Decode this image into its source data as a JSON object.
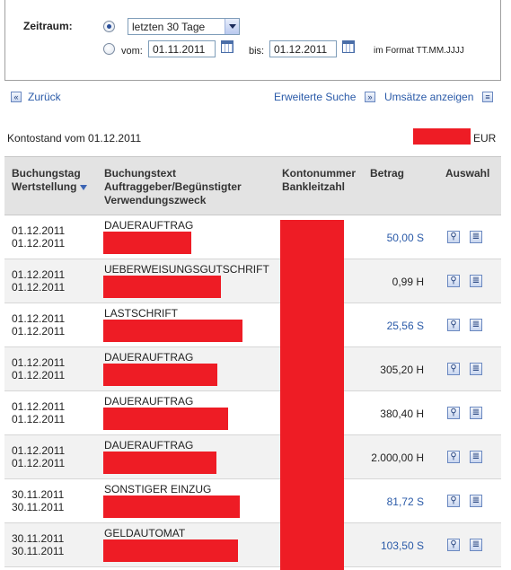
{
  "filter": {
    "zeitraum_label": "Zeitraum:",
    "period_select_value": "letzten 30 Tage",
    "from_label": "vom:",
    "from_value": "01.11.2011",
    "to_label": "bis:",
    "to_value": "01.12.2011",
    "format_hint": "im Format TT.MM.JJJJ"
  },
  "nav": {
    "back_label": "Zurück",
    "advanced_search_label": "Erweiterte Suche",
    "show_transactions_label": "Umsätze anzeigen"
  },
  "balance": {
    "label": "Kontostand vom 01.12.2011",
    "currency": "EUR"
  },
  "table": {
    "headers": {
      "date_line1": "Buchungstag",
      "date_line2": "Wertstellung",
      "text_line1": "Buchungstext",
      "text_line2": "Auftraggeber/Begünstigter",
      "text_line3": "Verwendungszweck",
      "account_line1": "Kontonummer",
      "account_line2": "Bankleitzahl",
      "amount": "Betrag",
      "action": "Auswahl"
    },
    "rows": [
      {
        "booking": "01.12.2011",
        "value": "01.12.2011",
        "type": "DAUERAUFTRAG",
        "amount": "50,00 S"
      },
      {
        "booking": "01.12.2011",
        "value": "01.12.2011",
        "type": "UEBERWEISUNGSGUTSCHRIFT",
        "amount": "0,99 H"
      },
      {
        "booking": "01.12.2011",
        "value": "01.12.2011",
        "type": "LASTSCHRIFT",
        "amount": "25,56 S"
      },
      {
        "booking": "01.12.2011",
        "value": "01.12.2011",
        "type": "DAUERAUFTRAG",
        "amount": "305,20 H"
      },
      {
        "booking": "01.12.2011",
        "value": "01.12.2011",
        "type": "DAUERAUFTRAG",
        "amount": "380,40 H"
      },
      {
        "booking": "01.12.2011",
        "value": "01.12.2011",
        "type": "DAUERAUFTRAG",
        "amount": "2.000,00 H"
      },
      {
        "booking": "30.11.2011",
        "value": "30.11.2011",
        "type": "SONSTIGER EINZUG",
        "amount": "81,72 S"
      },
      {
        "booking": "30.11.2011",
        "value": "30.11.2011",
        "type": "GELDAUTOMAT",
        "amount": "103,50 S"
      }
    ]
  },
  "colors": {
    "link": "#2a5aa8",
    "redaction": "#ee1c25",
    "header_bg": "#e3e3e3"
  },
  "icons": [
    "calendar-icon",
    "back-arrow-icon",
    "forward-arrow-icon",
    "list-icon",
    "sort-down-icon",
    "magnifier-icon",
    "document-icon"
  ]
}
